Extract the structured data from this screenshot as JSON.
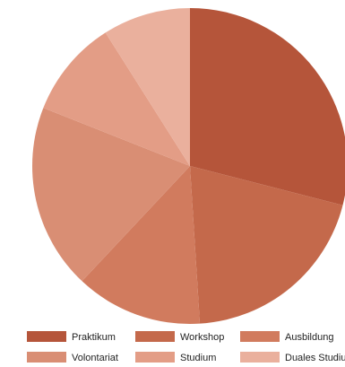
{
  "chart_data": {
    "type": "pie",
    "title": "",
    "legend_position": "bottom",
    "slices": [
      {
        "label": "Praktikum",
        "value": 29,
        "color": "#b5553a"
      },
      {
        "label": "Workshop",
        "value": 20,
        "color": "#c4694b"
      },
      {
        "label": "Ausbildung",
        "value": 13,
        "color": "#d17b5e"
      },
      {
        "label": "Volontariat",
        "value": 19,
        "color": "#d98e74"
      },
      {
        "label": "Studium",
        "value": 10,
        "color": "#e39d86"
      },
      {
        "label": "Duales Studium",
        "value": 9,
        "color": "#eab09d"
      }
    ]
  }
}
